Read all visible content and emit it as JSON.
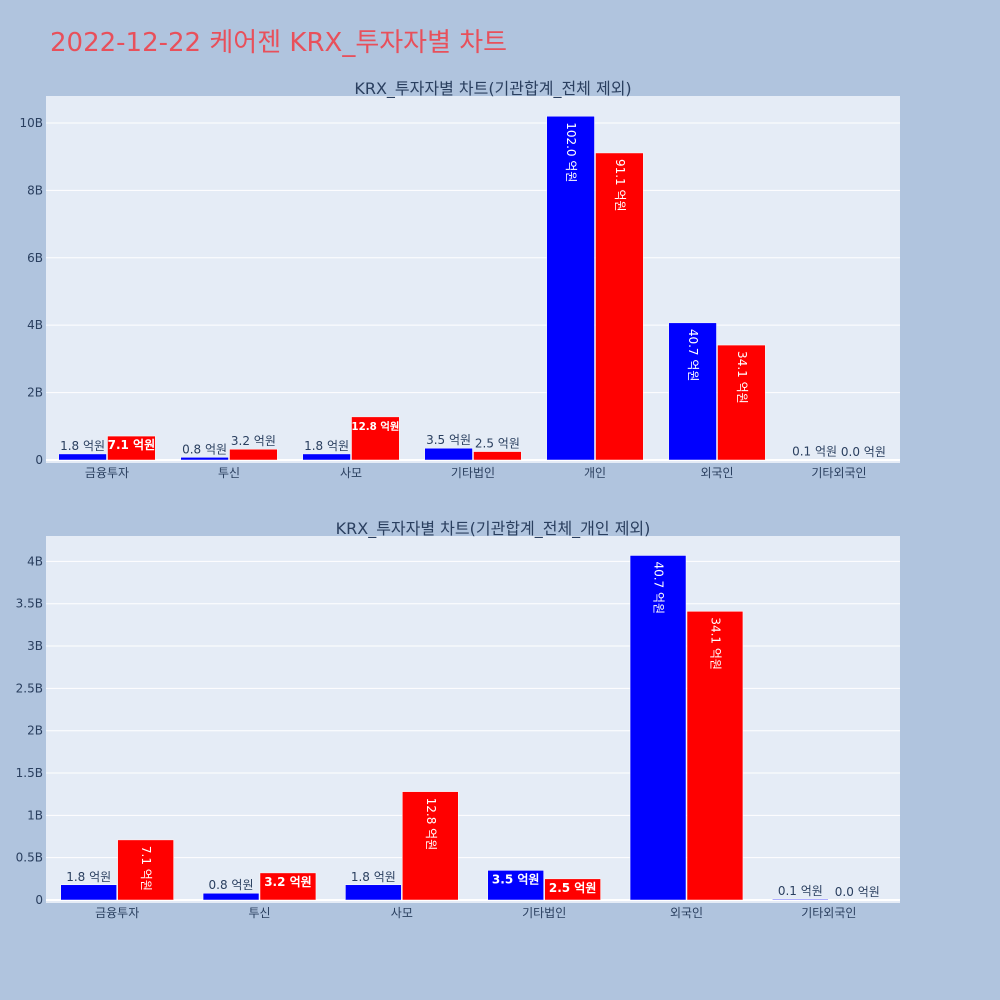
{
  "page": {
    "title": "2022-12-22 케어젠 KRX_투자자별 차트",
    "title_color": "#e8505b",
    "background": "#b0c4de",
    "plot_background": "#e5ecf6"
  },
  "chart_data": [
    {
      "type": "bar",
      "title": "KRX_투자자별 차트(기관합계_전체 제외)",
      "categories": [
        "금융투자",
        "투신",
        "사모",
        "기타법인",
        "개인",
        "외국인",
        "기타외국인"
      ],
      "ylim": [
        0,
        10.8
      ],
      "yticks": [
        0,
        2,
        4,
        6,
        8,
        10
      ],
      "ytick_labels": [
        "0",
        "2B",
        "4B",
        "6B",
        "8B",
        "10B"
      ],
      "grid": true,
      "series": [
        {
          "color": "#0000ff",
          "values": [
            0.18,
            0.08,
            0.18,
            0.35,
            10.2,
            4.07,
            0.01
          ],
          "labels": [
            "1.8 억원",
            "0.8 억원",
            "1.8 억원",
            "3.5 억원",
            "102.0 억원",
            "40.7 억원",
            "0.1 억원"
          ]
        },
        {
          "color": "#ff0000",
          "values": [
            0.71,
            0.32,
            1.28,
            0.25,
            9.11,
            3.41,
            0.0
          ],
          "labels": [
            "7.1 억원",
            "3.2 억원",
            "12.8 억원",
            "2.5 억원",
            "91.1 억원",
            "34.1 억원",
            "0.0 억원"
          ]
        }
      ]
    },
    {
      "type": "bar",
      "title": "KRX_투자자별 차트(기관합계_전체_개인 제외)",
      "categories": [
        "금융투자",
        "투신",
        "사모",
        "기타법인",
        "외국인",
        "기타외국인"
      ],
      "ylim": [
        0,
        4.3
      ],
      "yticks": [
        0,
        0.5,
        1,
        1.5,
        2,
        2.5,
        3,
        3.5,
        4
      ],
      "ytick_labels": [
        "0",
        "0.5B",
        "1B",
        "1.5B",
        "2B",
        "2.5B",
        "3B",
        "3.5B",
        "4B"
      ],
      "grid": true,
      "series": [
        {
          "color": "#0000ff",
          "values": [
            0.18,
            0.08,
            0.18,
            0.35,
            4.07,
            0.01
          ],
          "labels": [
            "1.8 억원",
            "0.8 억원",
            "1.8 억원",
            "3.5 억원",
            "40.7 억원",
            "0.1 억원"
          ]
        },
        {
          "color": "#ff0000",
          "values": [
            0.71,
            0.32,
            1.28,
            0.25,
            3.41,
            0.0
          ],
          "labels": [
            "7.1 억원",
            "3.2 억원",
            "12.8 억원",
            "2.5 억원",
            "34.1 억원",
            "0.0 억원"
          ]
        }
      ]
    }
  ]
}
